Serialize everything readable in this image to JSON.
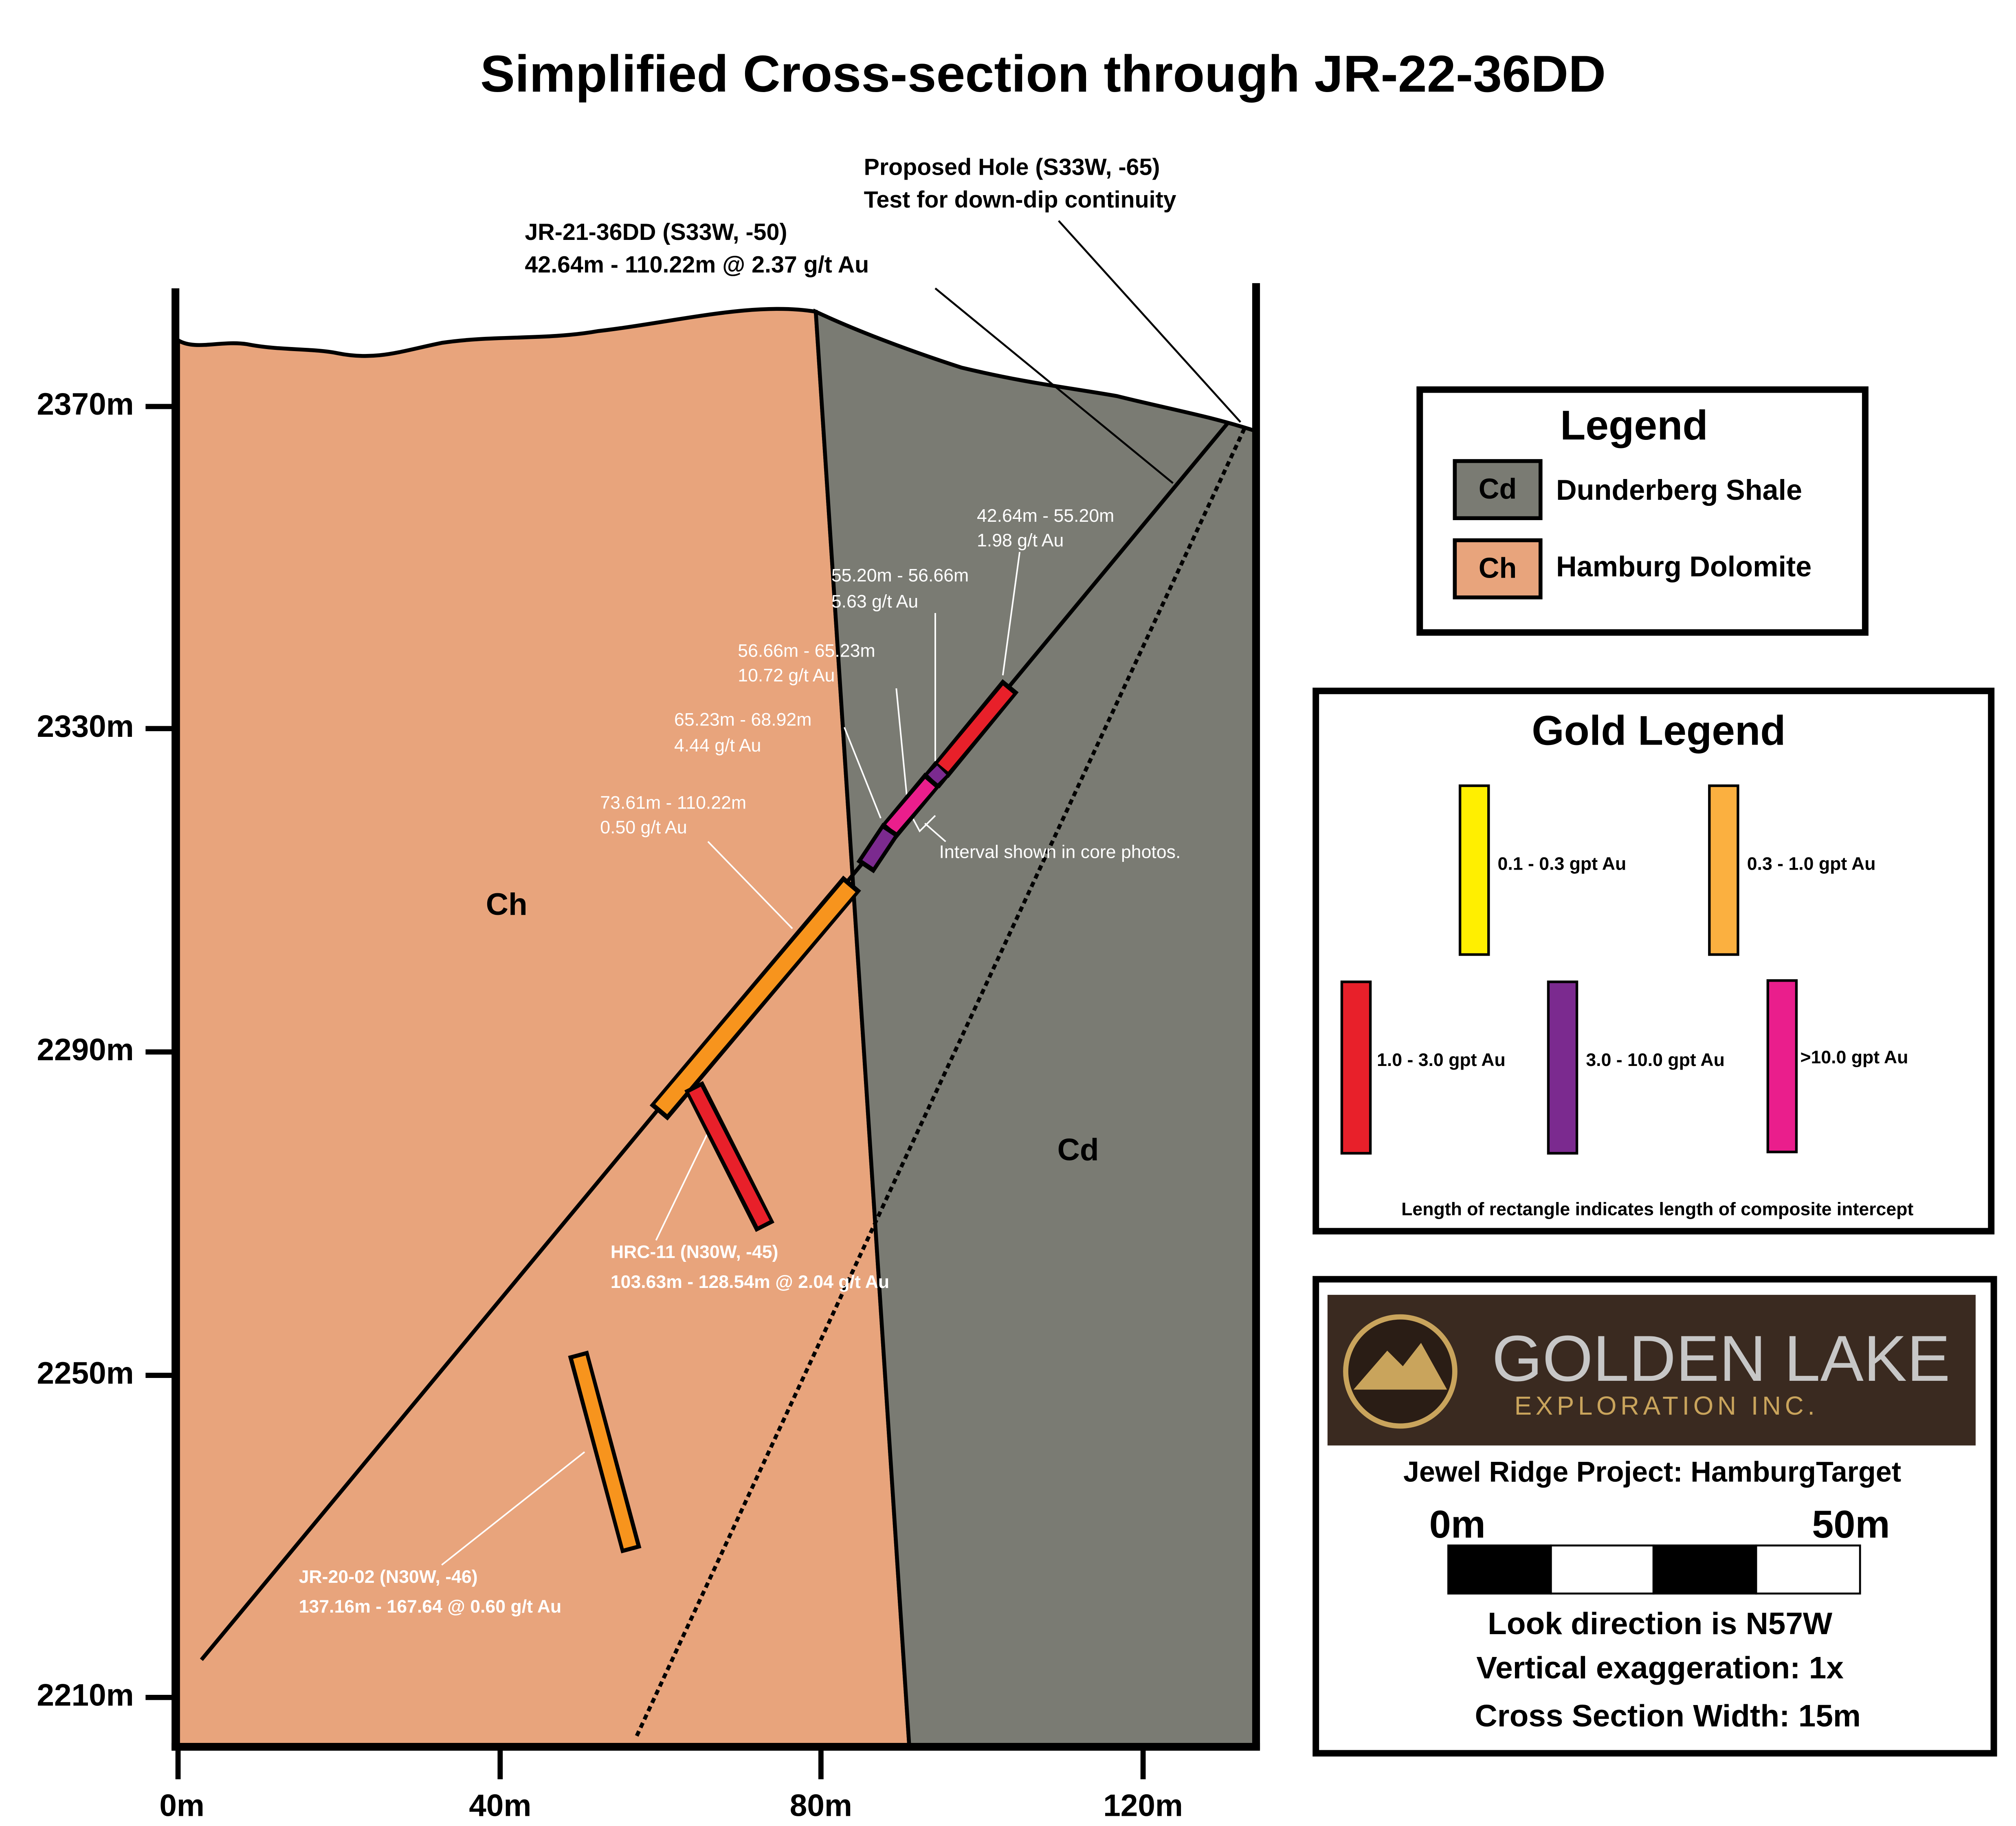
{
  "title": "Simplified Cross-section through JR-22-36DD",
  "axes": {
    "y_labels": [
      "2370m",
      "2330m",
      "2290m",
      "2250m",
      "2210m"
    ],
    "x_labels": [
      "0m",
      "40m",
      "80m",
      "120m"
    ]
  },
  "units": {
    "ch": "Ch",
    "cd": "Cd"
  },
  "callouts": {
    "proposed": [
      "Proposed Hole (S33W, -65)",
      "Test for down-dip continuity"
    ],
    "jr21": [
      "JR-21-36DD (S33W, -50)",
      "42.64m - 110.22m @ 2.37 g/t Au"
    ],
    "hrc11": [
      "HRC-11 (N30W, -45)",
      "103.63m - 128.54m @ 2.04 g/t Au"
    ],
    "jr2002": [
      "JR-20-02 (N30W, -46)",
      "137.16m - 167.64 @ 0.60 g/t Au"
    ],
    "core": "Interval shown in core photos.",
    "intervals": [
      [
        "42.64m - 55.20m",
        "1.98 g/t Au"
      ],
      [
        "55.20m - 56.66m",
        "5.63 g/t Au"
      ],
      [
        "56.66m - 65.23m",
        "10.72 g/t Au"
      ],
      [
        "65.23m - 68.92m",
        "4.44 g/t Au"
      ],
      [
        "73.61m - 110.22m",
        "0.50 g/t Au"
      ]
    ]
  },
  "legend": {
    "title": "Legend",
    "items": [
      {
        "code": "Cd",
        "label": "Dunderberg Shale"
      },
      {
        "code": "Ch",
        "label": "Hamburg Dolomite"
      }
    ]
  },
  "gold_legend": {
    "title": "Gold Legend",
    "items": [
      "0.1 - 0.3 gpt Au",
      "0.3 - 1.0 gpt Au",
      "1.0 - 3.0 gpt Au",
      "3.0 - 10.0 gpt Au",
      ">10.0 gpt Au"
    ],
    "note": "Length of rectangle indicates length of composite intercept"
  },
  "logo": {
    "name": "GOLDEN LAKE",
    "sub": "EXPLORATION INC."
  },
  "info": {
    "project": "Jewel Ridge Project: HamburgTarget",
    "scale_labels": [
      "0m",
      "50m"
    ],
    "lines": [
      "Look direction is N57W",
      "Vertical exaggeration: 1x",
      "Cross Section Width: 15m"
    ]
  }
}
